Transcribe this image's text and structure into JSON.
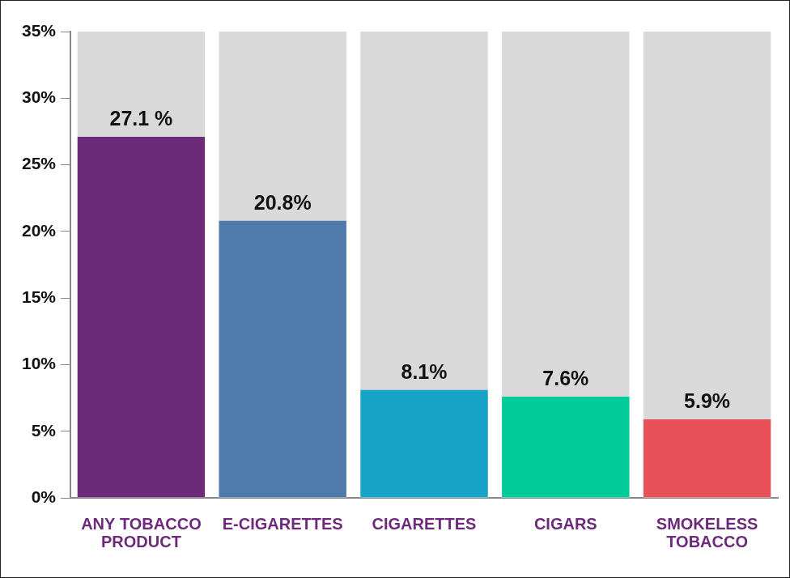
{
  "chart_data": {
    "type": "bar",
    "categories": [
      "ANY TOBACCO PRODUCT",
      "E-CIGARETTES",
      "CIGARETTES",
      "CIGARS",
      "SMOKELESS TOBACCO"
    ],
    "values": [
      27.1,
      20.8,
      8.1,
      7.6,
      5.9
    ],
    "value_labels": [
      "27.1 %",
      "20.8%",
      "8.1%",
      "7.6%",
      "5.9%"
    ],
    "colors": [
      "#6d2a7a",
      "#4e7bab",
      "#17a2c8",
      "#00cc99",
      "#e8505a"
    ],
    "ylim": [
      0,
      35
    ],
    "yticks": [
      {
        "value": 0,
        "label": "0%"
      },
      {
        "value": 5,
        "label": "5%"
      },
      {
        "value": 10,
        "label": "10%"
      },
      {
        "value": 15,
        "label": "15%"
      },
      {
        "value": 20,
        "label": "20%"
      },
      {
        "value": 25,
        "label": "25%"
      },
      {
        "value": 30,
        "label": "30%"
      },
      {
        "value": 35,
        "label": "35%"
      }
    ],
    "grid": false,
    "data_labels": true
  }
}
